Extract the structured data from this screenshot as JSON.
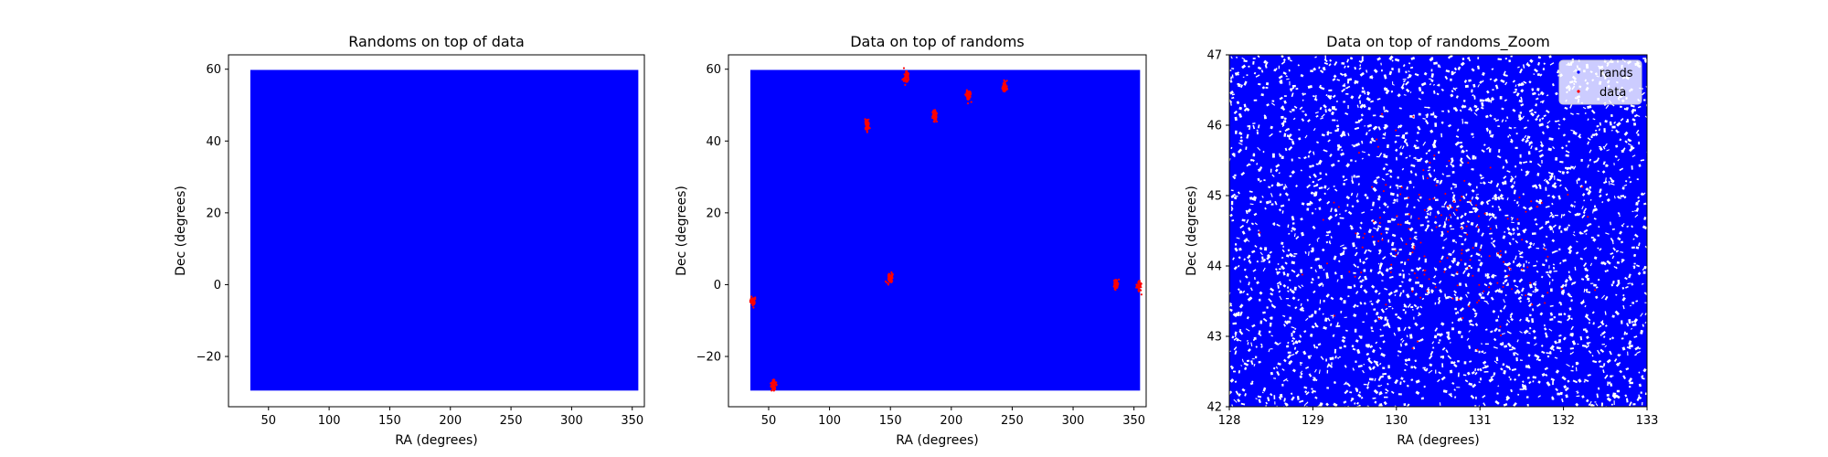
{
  "chart_data": [
    {
      "type": "scatter",
      "title": "Randoms on top of data",
      "xlabel": "RA (degrees)",
      "ylabel": "Dec (degrees)",
      "xlim": [
        17,
        360
      ],
      "ylim": [
        -34,
        64
      ],
      "xticks": [
        50,
        100,
        150,
        200,
        250,
        300,
        350
      ],
      "yticks": [
        -20,
        0,
        20,
        40,
        60
      ],
      "grid": false,
      "series": [
        {
          "name": "rands",
          "color": "#0000ff",
          "region": {
            "ra": [
              35,
              355
            ],
            "dec": [
              -29.5,
              59.8
            ]
          }
        },
        {
          "name": "data",
          "color": "#ff0000",
          "clusters": []
        }
      ],
      "draw_order": [
        "data",
        "rands"
      ]
    },
    {
      "type": "scatter",
      "title": "Data on top of randoms",
      "xlabel": "RA (degrees)",
      "ylabel": "Dec (degrees)",
      "xlim": [
        17,
        360
      ],
      "ylim": [
        -34,
        64
      ],
      "xticks": [
        50,
        100,
        150,
        200,
        250,
        300,
        350
      ],
      "yticks": [
        -20,
        0,
        20,
        40,
        60
      ],
      "grid": false,
      "series": [
        {
          "name": "rands",
          "color": "#0000ff",
          "region": {
            "ra": [
              35,
              355
            ],
            "dec": [
              -29.5,
              59.8
            ]
          }
        },
        {
          "name": "data",
          "color": "#ff0000",
          "clusters": [
            {
              "ra": 37,
              "dec": -4.5
            },
            {
              "ra": 54,
              "dec": -28
            },
            {
              "ra": 131,
              "dec": 44.5
            },
            {
              "ra": 150,
              "dec": 2
            },
            {
              "ra": 163,
              "dec": 58
            },
            {
              "ra": 186,
              "dec": 47
            },
            {
              "ra": 214,
              "dec": 53
            },
            {
              "ra": 244,
              "dec": 55
            },
            {
              "ra": 335,
              "dec": 0
            },
            {
              "ra": 354,
              "dec": -0.5
            }
          ]
        }
      ],
      "draw_order": [
        "rands",
        "data"
      ]
    },
    {
      "type": "scatter",
      "title": "Data on top of randoms_Zoom",
      "xlabel": "RA (degrees)",
      "ylabel": "Dec (degrees)",
      "xlim": [
        128,
        133
      ],
      "ylim": [
        42,
        47
      ],
      "xticks": [
        128,
        129,
        130,
        131,
        132,
        133
      ],
      "yticks": [
        42,
        43,
        44,
        45,
        46,
        47
      ],
      "grid": false,
      "legend": {
        "position": "upper right",
        "entries": [
          "rands",
          "data"
        ]
      },
      "series": [
        {
          "name": "rands",
          "color": "#0000ff",
          "region": {
            "ra": [
              128,
              133
            ],
            "dec": [
              42,
              47
            ]
          },
          "density": "dense uniform random points"
        },
        {
          "name": "data",
          "color": "#ff0000",
          "clusters": [
            {
              "ra": 130.6,
              "dec": 44.4,
              "spread": 1.3
            }
          ]
        }
      ],
      "draw_order": [
        "rands",
        "data"
      ]
    }
  ]
}
